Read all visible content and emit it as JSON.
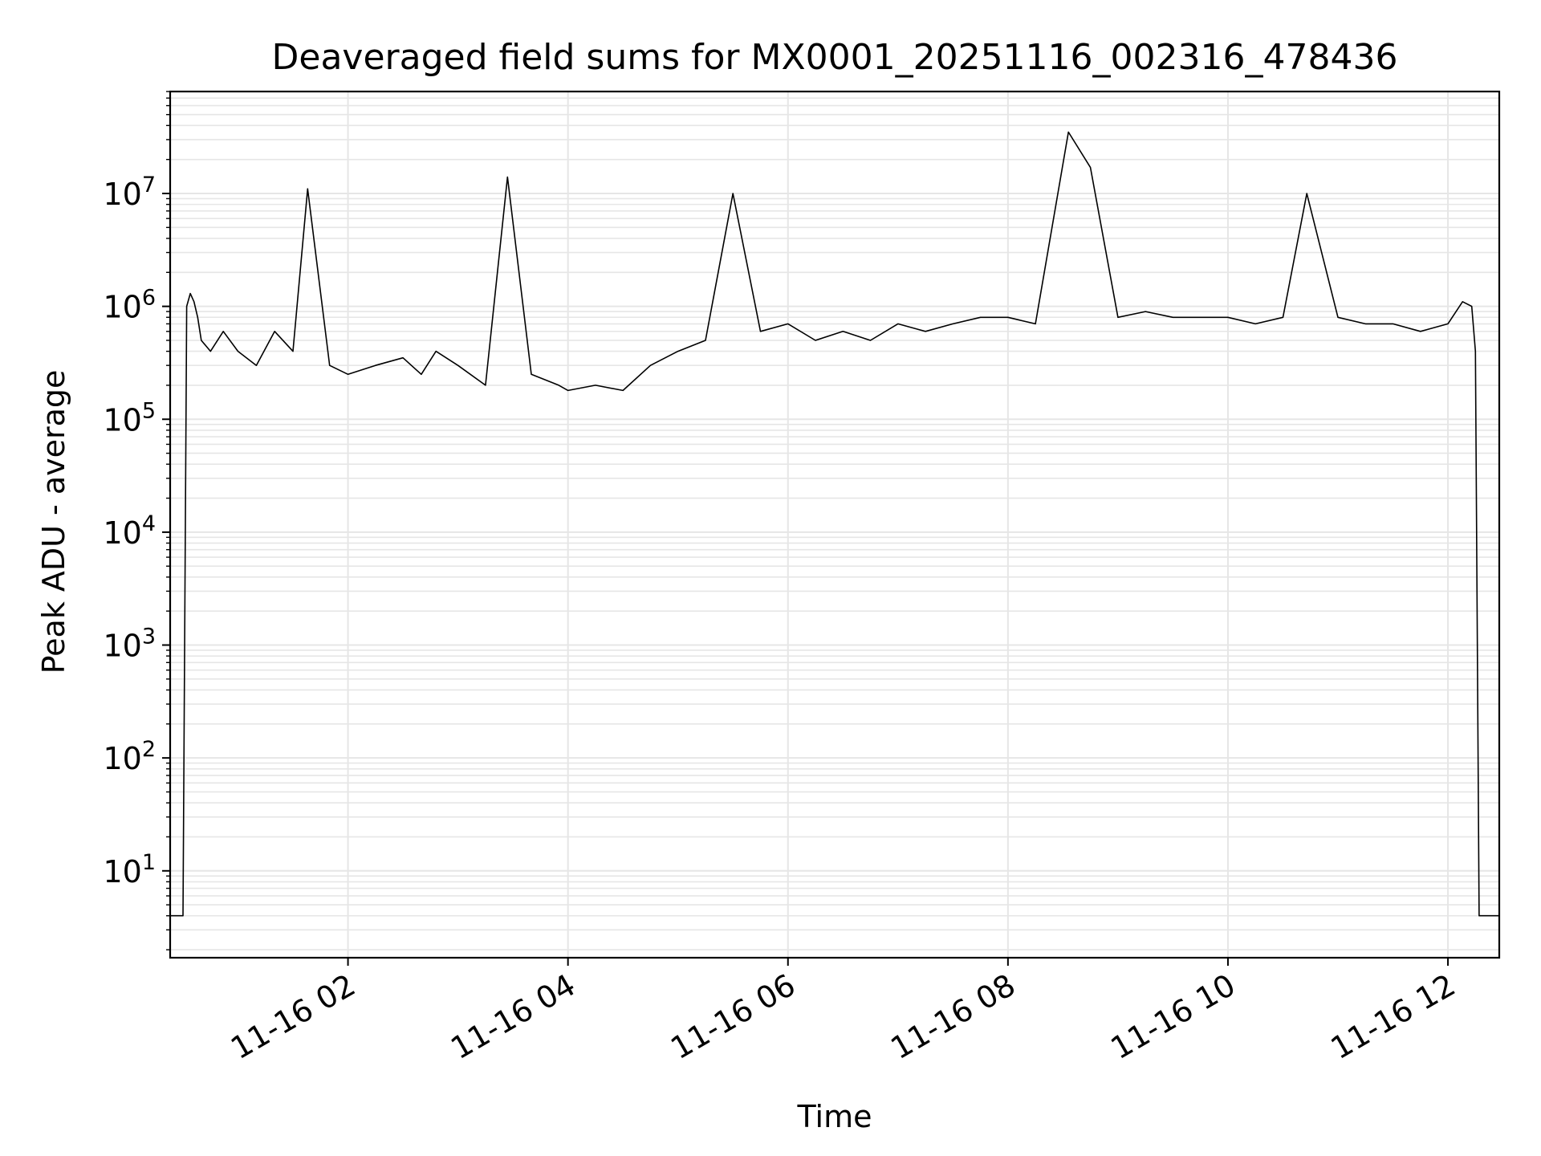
{
  "chart_data": {
    "type": "line",
    "title": "Deaveraged field sums for MX0001_20251116_002316_478436",
    "xlabel": "Time",
    "ylabel": "Peak ADU - average",
    "x_ticks": [
      "11-16 02",
      "11-16 04",
      "11-16 06",
      "11-16 08",
      "11-16 10",
      "11-16 12"
    ],
    "x_tick_times": [
      "2025-11-16T02:00",
      "2025-11-16T04:00",
      "2025-11-16T06:00",
      "2025-11-16T08:00",
      "2025-11-16T10:00",
      "2025-11-16T12:00"
    ],
    "xlim": [
      "2025-11-16T00:23",
      "2025-11-16T12:28"
    ],
    "y_scale": "log",
    "ylim": [
      1.7,
      80000000
    ],
    "y_ticks": [
      {
        "base": "10",
        "exp": "1",
        "value": 10
      },
      {
        "base": "10",
        "exp": "2",
        "value": 100
      },
      {
        "base": "10",
        "exp": "3",
        "value": 1000
      },
      {
        "base": "10",
        "exp": "4",
        "value": 10000
      },
      {
        "base": "10",
        "exp": "5",
        "value": 100000
      },
      {
        "base": "10",
        "exp": "6",
        "value": 1000000
      },
      {
        "base": "10",
        "exp": "7",
        "value": 10000000
      }
    ],
    "grid": true,
    "line_color": "#000000",
    "grid_color": "#e6e6e6",
    "series": [
      {
        "x": [
          "2025-11-16T00:23",
          "2025-11-16T00:30",
          "2025-11-16T00:32",
          "2025-11-16T00:34",
          "2025-11-16T00:36",
          "2025-11-16T00:38",
          "2025-11-16T00:40",
          "2025-11-16T00:45",
          "2025-11-16T00:52",
          "2025-11-16T01:00",
          "2025-11-16T01:10",
          "2025-11-16T01:20",
          "2025-11-16T01:30",
          "2025-11-16T01:38",
          "2025-11-16T01:50",
          "2025-11-16T02:00",
          "2025-11-16T02:15",
          "2025-11-16T02:30",
          "2025-11-16T02:40",
          "2025-11-16T02:48",
          "2025-11-16T03:00",
          "2025-11-16T03:15",
          "2025-11-16T03:27",
          "2025-11-16T03:40",
          "2025-11-16T03:55",
          "2025-11-16T04:00",
          "2025-11-16T04:15",
          "2025-11-16T04:30",
          "2025-11-16T04:45",
          "2025-11-16T05:00",
          "2025-11-16T05:15",
          "2025-11-16T05:30",
          "2025-11-16T05:45",
          "2025-11-16T06:00",
          "2025-11-16T06:15",
          "2025-11-16T06:30",
          "2025-11-16T06:45",
          "2025-11-16T07:00",
          "2025-11-16T07:15",
          "2025-11-16T07:30",
          "2025-11-16T07:45",
          "2025-11-16T08:00",
          "2025-11-16T08:15",
          "2025-11-16T08:33",
          "2025-11-16T08:45",
          "2025-11-16T09:00",
          "2025-11-16T09:15",
          "2025-11-16T09:30",
          "2025-11-16T09:45",
          "2025-11-16T10:00",
          "2025-11-16T10:15",
          "2025-11-16T10:30",
          "2025-11-16T10:43",
          "2025-11-16T11:00",
          "2025-11-16T11:15",
          "2025-11-16T11:30",
          "2025-11-16T11:45",
          "2025-11-16T12:00",
          "2025-11-16T12:08",
          "2025-11-16T12:13",
          "2025-11-16T12:15",
          "2025-11-16T12:17",
          "2025-11-16T12:20",
          "2025-11-16T12:28"
        ],
        "y": [
          4,
          4,
          1000000,
          1300000,
          1100000,
          800000,
          500000,
          400000,
          600000,
          400000,
          300000,
          600000,
          400000,
          11000000,
          300000,
          250000,
          300000,
          350000,
          250000,
          400000,
          300000,
          200000,
          14000000,
          250000,
          200000,
          180000,
          200000,
          180000,
          300000,
          400000,
          500000,
          10000000,
          600000,
          700000,
          500000,
          600000,
          500000,
          700000,
          600000,
          700000,
          800000,
          800000,
          700000,
          35000000,
          17000000,
          800000,
          900000,
          800000,
          800000,
          800000,
          700000,
          800000,
          10000000,
          800000,
          700000,
          700000,
          600000,
          700000,
          1100000,
          1000000,
          400000,
          4,
          4,
          4
        ]
      }
    ]
  }
}
